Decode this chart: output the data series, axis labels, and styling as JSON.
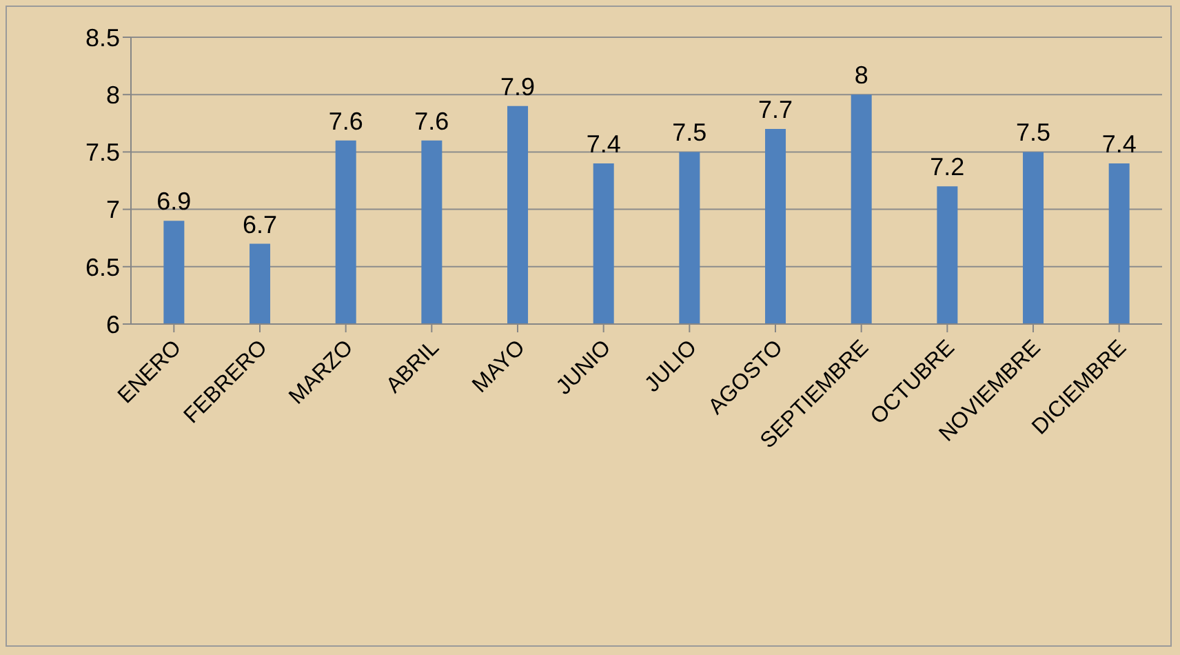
{
  "chart_data": {
    "type": "bar",
    "categories": [
      "ENERO",
      "FEBRERO",
      "MARZO",
      "ABRIL",
      "MAYO",
      "JUNIO",
      "JULIO",
      "AGOSTO",
      "SEPTIEMBRE",
      "OCTUBRE",
      "NOVIEMBRE",
      "DICIEMBRE"
    ],
    "values": [
      6.9,
      6.7,
      7.6,
      7.6,
      7.9,
      7.4,
      7.5,
      7.7,
      8,
      7.2,
      7.5,
      7.4
    ],
    "color": "#4f81bd",
    "ylim": [
      6,
      8.5
    ],
    "yticks": [
      6,
      6.5,
      7,
      7.5,
      8,
      8.5
    ],
    "grid": "y",
    "data_labels": true
  }
}
